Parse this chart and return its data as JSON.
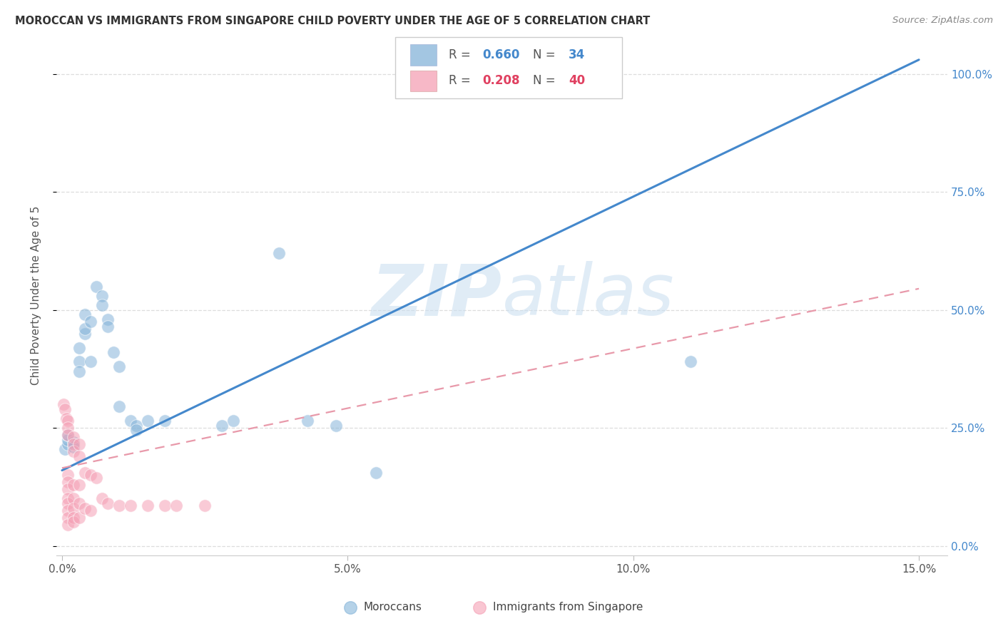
{
  "title": "MOROCCAN VS IMMIGRANTS FROM SINGAPORE CHILD POVERTY UNDER THE AGE OF 5 CORRELATION CHART",
  "source": "Source: ZipAtlas.com",
  "ylabel": "Child Poverty Under the Age of 5",
  "xlim": [
    -0.001,
    0.155
  ],
  "ylim": [
    -0.02,
    1.08
  ],
  "ytick_vals": [
    0.0,
    0.25,
    0.5,
    0.75,
    1.0
  ],
  "ytick_labels": [
    "0.0%",
    "25.0%",
    "50.0%",
    "75.0%",
    "100.0%"
  ],
  "xtick_vals": [
    0.0,
    0.05,
    0.1,
    0.15
  ],
  "xtick_labels": [
    "0.0%",
    "5.0%",
    "10.0%",
    "15.0%"
  ],
  "blue_scatter": [
    [
      0.0005,
      0.205
    ],
    [
      0.001,
      0.215
    ],
    [
      0.001,
      0.225
    ],
    [
      0.001,
      0.235
    ],
    [
      0.002,
      0.22
    ],
    [
      0.002,
      0.21
    ],
    [
      0.003,
      0.39
    ],
    [
      0.003,
      0.37
    ],
    [
      0.003,
      0.42
    ],
    [
      0.004,
      0.45
    ],
    [
      0.004,
      0.46
    ],
    [
      0.004,
      0.49
    ],
    [
      0.005,
      0.475
    ],
    [
      0.005,
      0.39
    ],
    [
      0.006,
      0.55
    ],
    [
      0.007,
      0.53
    ],
    [
      0.007,
      0.51
    ],
    [
      0.008,
      0.48
    ],
    [
      0.008,
      0.465
    ],
    [
      0.009,
      0.41
    ],
    [
      0.01,
      0.38
    ],
    [
      0.01,
      0.295
    ],
    [
      0.012,
      0.265
    ],
    [
      0.013,
      0.255
    ],
    [
      0.013,
      0.245
    ],
    [
      0.015,
      0.265
    ],
    [
      0.018,
      0.265
    ],
    [
      0.028,
      0.255
    ],
    [
      0.03,
      0.265
    ],
    [
      0.038,
      0.62
    ],
    [
      0.043,
      0.265
    ],
    [
      0.048,
      0.255
    ],
    [
      0.055,
      0.155
    ],
    [
      0.11,
      0.39
    ]
  ],
  "pink_scatter": [
    [
      0.0003,
      0.3
    ],
    [
      0.0005,
      0.29
    ],
    [
      0.0007,
      0.27
    ],
    [
      0.001,
      0.265
    ],
    [
      0.001,
      0.25
    ],
    [
      0.001,
      0.235
    ],
    [
      0.001,
      0.15
    ],
    [
      0.001,
      0.135
    ],
    [
      0.001,
      0.12
    ],
    [
      0.001,
      0.1
    ],
    [
      0.001,
      0.09
    ],
    [
      0.001,
      0.075
    ],
    [
      0.001,
      0.06
    ],
    [
      0.001,
      0.045
    ],
    [
      0.002,
      0.23
    ],
    [
      0.002,
      0.215
    ],
    [
      0.002,
      0.2
    ],
    [
      0.002,
      0.13
    ],
    [
      0.002,
      0.1
    ],
    [
      0.002,
      0.08
    ],
    [
      0.002,
      0.06
    ],
    [
      0.002,
      0.05
    ],
    [
      0.003,
      0.215
    ],
    [
      0.003,
      0.19
    ],
    [
      0.003,
      0.13
    ],
    [
      0.003,
      0.09
    ],
    [
      0.003,
      0.06
    ],
    [
      0.004,
      0.155
    ],
    [
      0.004,
      0.08
    ],
    [
      0.005,
      0.15
    ],
    [
      0.005,
      0.075
    ],
    [
      0.006,
      0.145
    ],
    [
      0.007,
      0.1
    ],
    [
      0.008,
      0.09
    ],
    [
      0.01,
      0.085
    ],
    [
      0.012,
      0.085
    ],
    [
      0.015,
      0.085
    ],
    [
      0.018,
      0.085
    ],
    [
      0.02,
      0.085
    ],
    [
      0.025,
      0.085
    ]
  ],
  "blue_line_x": [
    0.0,
    0.15
  ],
  "blue_line_y": [
    0.16,
    1.03
  ],
  "pink_line_x": [
    0.0,
    0.15
  ],
  "pink_line_y": [
    0.165,
    0.545
  ],
  "watermark_zip": "ZIP",
  "watermark_atlas": "atlas",
  "bg_color": "#ffffff",
  "blue_color": "#85b4d9",
  "pink_color": "#f5a0b5",
  "blue_line_color": "#4488cc",
  "pink_line_color": "#e899aa",
  "legend_r_color_blue": "#4488cc",
  "legend_n_color_blue": "#4488cc",
  "legend_r_color_pink": "#e04060",
  "legend_n_color_pink": "#e04060",
  "grid_color": "#dddddd",
  "title_color": "#333333",
  "axis_label_color": "#555555",
  "tick_color": "#555555",
  "source_color": "#888888"
}
